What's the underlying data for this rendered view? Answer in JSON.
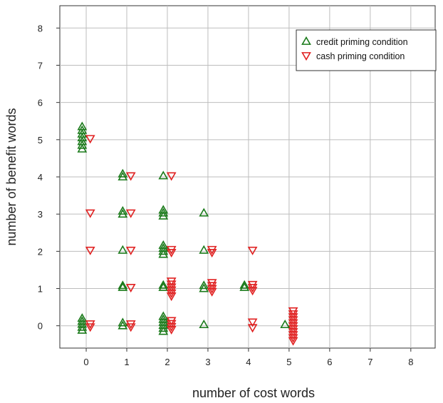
{
  "chart_data": {
    "type": "scatter",
    "title": "",
    "xlabel": "number of cost words",
    "ylabel": "number of benefit words",
    "xlim": [
      -0.65,
      8.6
    ],
    "ylim": [
      -0.6,
      8.6
    ],
    "x_ticks": [
      "0",
      "1",
      "2",
      "3",
      "4",
      "5",
      "6",
      "7",
      "8"
    ],
    "y_ticks": [
      "0",
      "1",
      "2",
      "3",
      "4",
      "5",
      "6",
      "7",
      "8"
    ],
    "grid": true,
    "legend_position": "top-right",
    "series": [
      {
        "name": "credit priming condition",
        "marker": "triangle-up",
        "color": "#1a7a1a",
        "points": [
          [
            -0.1,
            -0.12
          ],
          [
            -0.1,
            -0.04
          ],
          [
            -0.1,
            0.04
          ],
          [
            -0.1,
            0.12
          ],
          [
            -0.1,
            0.2
          ],
          [
            -0.1,
            4.75
          ],
          [
            -0.1,
            4.85
          ],
          [
            -0.1,
            4.95
          ],
          [
            -0.1,
            5.05
          ],
          [
            -0.1,
            5.15
          ],
          [
            -0.1,
            5.25
          ],
          [
            -0.1,
            5.35
          ],
          [
            0.9,
            0.0
          ],
          [
            0.9,
            0.08
          ],
          [
            0.9,
            1.03
          ],
          [
            0.9,
            1.08
          ],
          [
            0.9,
            2.03
          ],
          [
            0.9,
            3.0
          ],
          [
            0.9,
            3.08
          ],
          [
            0.9,
            4.0
          ],
          [
            0.9,
            4.08
          ],
          [
            1.9,
            -0.15
          ],
          [
            1.9,
            -0.07
          ],
          [
            1.9,
            0.01
          ],
          [
            1.9,
            0.09
          ],
          [
            1.9,
            0.17
          ],
          [
            1.9,
            0.25
          ],
          [
            1.9,
            1.03
          ],
          [
            1.9,
            1.09
          ],
          [
            1.9,
            1.92
          ],
          [
            1.9,
            2.0
          ],
          [
            1.9,
            2.08
          ],
          [
            1.9,
            2.16
          ],
          [
            1.9,
            2.95
          ],
          [
            1.9,
            3.03
          ],
          [
            1.9,
            3.11
          ],
          [
            1.9,
            4.03
          ],
          [
            2.9,
            0.03
          ],
          [
            2.9,
            1.0
          ],
          [
            2.9,
            1.08
          ],
          [
            2.9,
            2.03
          ],
          [
            2.9,
            3.03
          ],
          [
            3.9,
            1.03
          ],
          [
            3.9,
            1.09
          ],
          [
            4.9,
            0.03
          ]
        ]
      },
      {
        "name": "cash priming condition",
        "marker": "triangle-down",
        "color": "#e02020",
        "points": [
          [
            0.1,
            -0.03
          ],
          [
            0.1,
            0.05
          ],
          [
            0.1,
            2.03
          ],
          [
            0.1,
            3.03
          ],
          [
            0.1,
            5.03
          ],
          [
            1.1,
            -0.03
          ],
          [
            1.1,
            0.05
          ],
          [
            1.1,
            1.03
          ],
          [
            1.1,
            2.03
          ],
          [
            1.1,
            3.03
          ],
          [
            1.1,
            4.03
          ],
          [
            2.1,
            -0.1
          ],
          [
            2.1,
            -0.02
          ],
          [
            2.1,
            0.06
          ],
          [
            2.1,
            0.14
          ],
          [
            2.1,
            0.8
          ],
          [
            2.1,
            0.88
          ],
          [
            2.1,
            0.96
          ],
          [
            2.1,
            1.04
          ],
          [
            2.1,
            1.12
          ],
          [
            2.1,
            1.2
          ],
          [
            2.1,
            1.97
          ],
          [
            2.1,
            2.05
          ],
          [
            2.1,
            4.03
          ],
          [
            3.1,
            0.92
          ],
          [
            3.1,
            1.0
          ],
          [
            3.1,
            1.08
          ],
          [
            3.1,
            1.16
          ],
          [
            3.1,
            1.97
          ],
          [
            3.1,
            2.05
          ],
          [
            4.1,
            -0.05
          ],
          [
            4.1,
            0.1
          ],
          [
            4.1,
            0.95
          ],
          [
            4.1,
            1.03
          ],
          [
            4.1,
            1.11
          ],
          [
            4.1,
            2.03
          ],
          [
            5.1,
            -0.4
          ],
          [
            5.1,
            -0.32
          ],
          [
            5.1,
            -0.24
          ],
          [
            5.1,
            -0.16
          ],
          [
            5.1,
            -0.08
          ],
          [
            5.1,
            0.0
          ],
          [
            5.1,
            0.08
          ],
          [
            5.1,
            0.16
          ],
          [
            5.1,
            0.24
          ],
          [
            5.1,
            0.32
          ],
          [
            5.1,
            0.4
          ]
        ]
      }
    ]
  }
}
